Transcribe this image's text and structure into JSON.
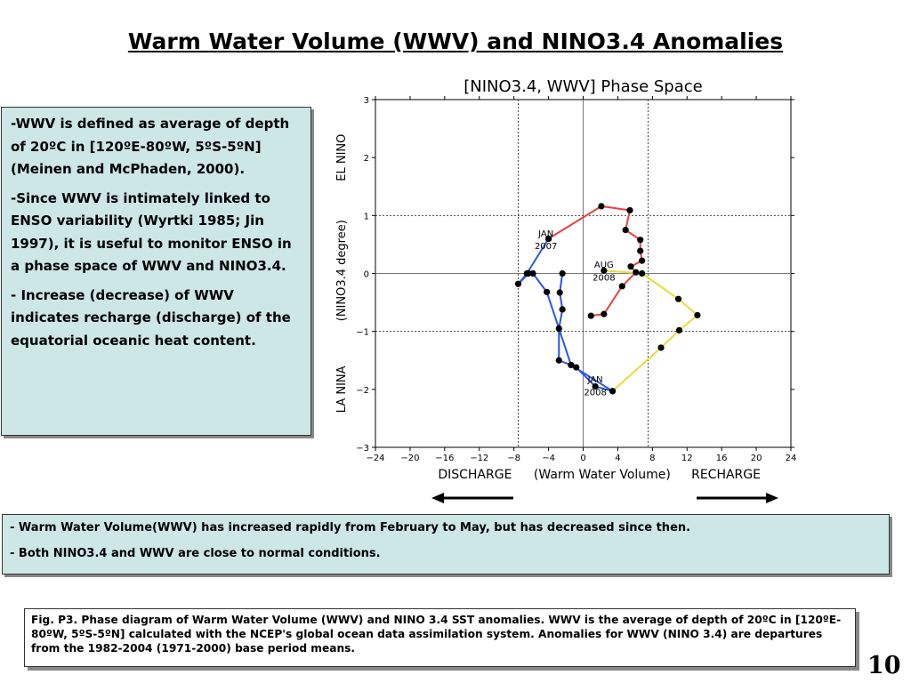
{
  "slide": {
    "title": "Warm Water Volume (WWV) and NINO3.4 Anomalies",
    "page_number": "10"
  },
  "left_box": {
    "p1_dash": "-",
    "p1_text": "WWV is defined as average of depth of 20ºC in [120ºE-80ºW, 5ºS-5ºN] (Meinen and McPhaden, 2000).",
    "p2_dash": "-",
    "p2_text": "Since WWV is intimately linked to ENSO variability (Wyrtki 1985; Jin 1997), it is useful to monitor ENSO in a phase space of WWV and NINO3.4.",
    "p3_dash": "-",
    "p3_text": " Increase (decrease) of WWV indicates recharge (discharge) of the equatorial oceanic heat content."
  },
  "bottom_box": {
    "line1_dash": "-",
    "line1_text": " Warm Water Volume(WWV) has increased rapidly from February to May,  but has decreased since then.",
    "line2_dash": "-",
    "line2_text": " Both NINO3.4 and WWV are close to normal conditions."
  },
  "caption": {
    "text": "Fig. P3. Phase diagram of Warm Water Volume (WWV) and NINO 3.4 SST anomalies. WWV is the average of depth of 20ºC in [120ºE-80ºW, 5ºS-5ºN] calculated with the NCEP's global ocean data assimilation system. Anomalies for WWV (NINO 3.4) are departures from the 1982-2004 (1971-2000) base period means."
  },
  "colors": {
    "blue_series": "#2a55e8",
    "red_series": "#e84040",
    "yellow_series": "#e8dc3c",
    "marker": "#000000",
    "box_fill": "#cde6e6"
  },
  "chart_data": {
    "type": "scatter",
    "title": "[NINO3.4, WWV] Phase Space",
    "xlabel": "(Warm Water Volume)",
    "ylabel": "(NINO3.4 degree)",
    "ylabel_top": "EL NINO",
    "ylabel_bottom": "LA NINA",
    "xlabel_left": "DISCHARGE",
    "xlabel_right": "RECHARGE",
    "xlim": [
      -24,
      24
    ],
    "ylim": [
      -3,
      3
    ],
    "x_ticks": [
      -24,
      -20,
      -16,
      -12,
      -8,
      -4,
      0,
      4,
      8,
      12,
      16,
      20,
      24
    ],
    "x_tick_labels": [
      "−24",
      "−20",
      "−16",
      "−12",
      "−8",
      "−4",
      "0",
      "4",
      "8",
      "12",
      "16",
      "20",
      "24"
    ],
    "y_ticks": [
      -3,
      -2,
      -1,
      0,
      1,
      2,
      3
    ],
    "y_tick_labels": [
      "−3",
      "−2",
      "−1",
      "0",
      "1",
      "2",
      "3"
    ],
    "reference_lines": {
      "x": [
        -7.5,
        0,
        7.5
      ],
      "y": [
        -1,
        0,
        1
      ]
    },
    "series": [
      {
        "name": "blue",
        "color": "#2a55e8",
        "points": [
          [
            -2.4,
            0.0
          ],
          [
            -2.7,
            -0.33
          ],
          [
            -2.4,
            -0.62
          ],
          [
            -2.8,
            -0.95
          ],
          [
            -2.8,
            -1.5
          ],
          [
            -1.4,
            -1.58
          ],
          [
            -0.8,
            -1.62
          ],
          [
            1.4,
            -1.95
          ],
          [
            3.4,
            -2.03
          ],
          [
            -1.4,
            -1.58
          ],
          [
            -4.2,
            -0.32
          ],
          [
            -5.8,
            0.0
          ],
          [
            -6.3,
            0.0
          ],
          [
            -7.5,
            -0.18
          ],
          [
            -6.5,
            0.0
          ],
          [
            -4.0,
            0.6
          ]
        ]
      },
      {
        "name": "red",
        "color": "#e84040",
        "points": [
          [
            -4.0,
            0.6
          ],
          [
            2.1,
            1.16
          ],
          [
            5.4,
            1.09
          ],
          [
            4.9,
            0.75
          ],
          [
            6.6,
            0.58
          ],
          [
            6.6,
            0.39
          ],
          [
            6.8,
            0.22
          ],
          [
            5.5,
            0.12
          ],
          [
            6.1,
            0.02
          ],
          [
            4.5,
            -0.22
          ],
          [
            2.4,
            -0.7
          ],
          [
            0.9,
            -0.73
          ]
        ]
      },
      {
        "name": "yellow",
        "color": "#e8dc3c",
        "points": [
          [
            2.4,
            0.05
          ],
          [
            6.8,
            0.0
          ],
          [
            11.0,
            -0.44
          ],
          [
            13.2,
            -0.72
          ],
          [
            11.1,
            -0.98
          ],
          [
            9.0,
            -1.28
          ],
          [
            3.4,
            -2.03
          ]
        ]
      }
    ],
    "annotations": [
      {
        "text": "JAN",
        "x": -4.3,
        "y": 0.7
      },
      {
        "text": "2007",
        "x": -4.3,
        "y": 0.48
      },
      {
        "text": "AUG",
        "x": 2.4,
        "y": 0.16
      },
      {
        "text": "2008",
        "x": 2.4,
        "y": -0.06
      },
      {
        "text": "JAN",
        "x": 1.4,
        "y": -1.82
      },
      {
        "text": "2008",
        "x": 1.4,
        "y": -2.04
      }
    ]
  }
}
